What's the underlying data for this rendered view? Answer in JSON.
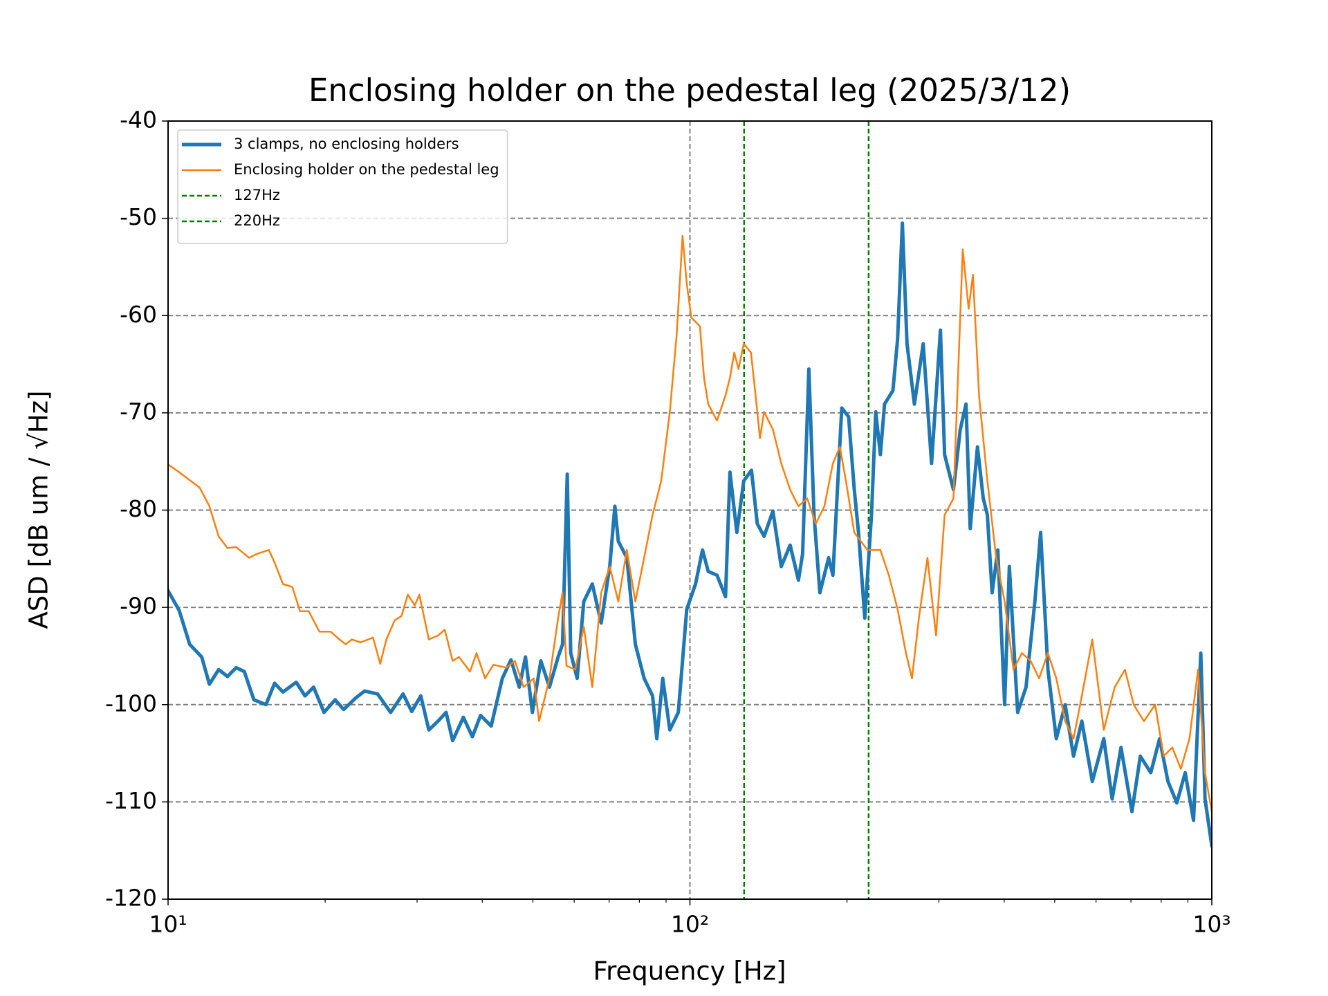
{
  "chart_data": {
    "type": "line",
    "title": "Enclosing holder on the pedestal leg (2025/3/12)",
    "xlabel": "Frequency [Hz]",
    "ylabel": "ASD [dB um / √Hz]",
    "xscale": "log",
    "xlim": [
      10,
      1000
    ],
    "xticks": [
      {
        "value": 10,
        "label": "10¹"
      },
      {
        "value": 100,
        "label": "10²"
      },
      {
        "value": 1000,
        "label": "10³"
      }
    ],
    "ylim": [
      -120,
      -40
    ],
    "yticks": [
      -120,
      -110,
      -100,
      -90,
      -80,
      -70,
      -60,
      -50,
      -40
    ],
    "grid": true,
    "legend": "upper left",
    "series": [
      {
        "name": "3 clamps, no enclosing holders",
        "color": "#1f77b4",
        "width": 5,
        "x": [
          10,
          10.5,
          11,
          11.6,
          12,
          12.5,
          13,
          13.5,
          14,
          14.6,
          15.4,
          16,
          16.6,
          17.6,
          18.3,
          19,
          19.9,
          20.9,
          21.7,
          22.9,
          23.8,
          25.2,
          26.7,
          28.2,
          29.3,
          30.5,
          31.6,
          32.9,
          34.1,
          35.1,
          36.8,
          38.3,
          39.7,
          41.6,
          43.7,
          45.4,
          47.1,
          48.4,
          49.9,
          51.8,
          53.8,
          55.9,
          57,
          58.2,
          59.1,
          60.8,
          62.6,
          65,
          67.6,
          70.2,
          71.8,
          72.9,
          75.7,
          78.6,
          81.7,
          84.8,
          86.4,
          88.7,
          91.5,
          95,
          98.6,
          102.5,
          105.7,
          108.4,
          112.7,
          117,
          119.3,
          123,
          126.8,
          131.2,
          134.6,
          138.7,
          144.2,
          149.6,
          155.6,
          161.4,
          164.4,
          169,
          172.9,
          177.4,
          184.4,
          187.9,
          195.4,
          201.4,
          206.5,
          210.4,
          216.3,
          222.8,
          227,
          231.7,
          236,
          244.9,
          250,
          255.3,
          260.6,
          269.2,
          279.9,
          290.4,
          302,
          307.6,
          319.9,
          329.6,
          338.1,
          344.4,
          355.6,
          364.8,
          371.5,
          379.3,
          389,
          400.9,
          409.3,
          424.6,
          440.6,
          458.1,
          469.9,
          485.3,
          503.5,
          523.6,
          543.3,
          563.6,
          590.2,
          620.9,
          644.2,
          669.9,
          703.1,
          729.5,
          763.9,
          794.3,
          824.2,
          857,
          889.2,
          922.6,
          952.6,
          970.5,
          1000
        ],
        "values": [
          -88.3,
          -90.3,
          -93.8,
          -95.1,
          -97.9,
          -96.4,
          -97.1,
          -96.2,
          -96.6,
          -99.5,
          -100,
          -97.8,
          -98.7,
          -97.7,
          -99.1,
          -98.2,
          -100.8,
          -99.5,
          -100.5,
          -99.3,
          -98.6,
          -98.9,
          -100.8,
          -98.9,
          -100.7,
          -99.1,
          -102.6,
          -101.7,
          -100.8,
          -103.7,
          -101.3,
          -103.3,
          -101.1,
          -102.2,
          -97.3,
          -95.4,
          -98.2,
          -95.1,
          -100.8,
          -95.5,
          -98.2,
          -95.1,
          -93.8,
          -76.3,
          -94.7,
          -97.3,
          -89.4,
          -87.6,
          -91.6,
          -85.8,
          -79.6,
          -83.2,
          -84.9,
          -93.8,
          -97.3,
          -99.1,
          -103.5,
          -97.3,
          -102.6,
          -100.8,
          -90.2,
          -87.6,
          -84.1,
          -86.3,
          -86.7,
          -88.9,
          -76.1,
          -82.3,
          -77,
          -75.9,
          -81.4,
          -82.7,
          -80.1,
          -85.8,
          -83.6,
          -87.2,
          -84.5,
          -65.5,
          -80.5,
          -88.5,
          -84.9,
          -86.7,
          -69.5,
          -70.4,
          -77.9,
          -82.3,
          -91.1,
          -80.5,
          -69.9,
          -74.3,
          -69.1,
          -67.7,
          -62.4,
          -50.5,
          -62.9,
          -69.1,
          -62.9,
          -75.2,
          -61.5,
          -74.3,
          -77.9,
          -71.7,
          -69.1,
          -81.9,
          -73.5,
          -78.8,
          -80.5,
          -88.5,
          -84.1,
          -100,
          -85.8,
          -100.8,
          -98.2,
          -89.4,
          -82.3,
          -96.4,
          -103.5,
          -100,
          -105.3,
          -101.7,
          -107.9,
          -103.5,
          -109.7,
          -104.4,
          -111,
          -105.3,
          -107,
          -103.5,
          -107.9,
          -110.1,
          -107,
          -111.9,
          -94.7,
          -109.7,
          -114.5
        ]
      },
      {
        "name": "Enclosing holder on the pedestal leg",
        "color": "#ff7f0e",
        "width": 2.5,
        "x": [
          10,
          10.5,
          11.5,
          12,
          12.5,
          13,
          13.5,
          14.3,
          14.8,
          15.6,
          16,
          16.6,
          17.3,
          17.9,
          18.6,
          19.5,
          20.5,
          21.3,
          21.9,
          22.5,
          23.4,
          24.7,
          25.5,
          26.2,
          27.2,
          28,
          28.8,
          29.7,
          30.3,
          31.6,
          32.9,
          33.9,
          35.1,
          36.1,
          37.9,
          39,
          40.5,
          42,
          44.5,
          46.2,
          48,
          50.2,
          51.4,
          53.8,
          55.9,
          57,
          58,
          60.3,
          62.6,
          65,
          67.6,
          70.2,
          72.9,
          75.7,
          78.6,
          81.7,
          84.8,
          88.1,
          91.5,
          94.3,
          96.8,
          98.6,
          100.6,
          104.5,
          106.4,
          108.4,
          112.7,
          117,
          119.3,
          121.6,
          123.9,
          126.8,
          130.9,
          133.6,
          136.2,
          138.7,
          144.2,
          149.6,
          155.6,
          161.4,
          167.8,
          174.2,
          181,
          187.9,
          193.8,
          199,
          206.5,
          218.8,
          231.7,
          240.5,
          250,
          259.4,
          266.4,
          274.6,
          285.2,
          296.2,
          307.6,
          319.9,
          333.2,
          342,
          348.6,
          358.1,
          371.5,
          386.2,
          400.9,
          416.8,
          432.7,
          449.5,
          466.7,
          485.3,
          503.5,
          523.6,
          543.3,
          563.6,
          590.2,
          620.9,
          651.6,
          681.8,
          708.5,
          741.3,
          778.8,
          808.8,
          840.1,
          872.4,
          906.1,
          941.2,
          970.5,
          1000
        ],
        "values": [
          -75.3,
          -76.1,
          -77.7,
          -79.6,
          -82.7,
          -83.9,
          -83.8,
          -84.9,
          -84.5,
          -84.1,
          -85.4,
          -87.6,
          -87.9,
          -90.4,
          -90.4,
          -92.5,
          -92.5,
          -93.3,
          -93.8,
          -93.3,
          -93.6,
          -93.1,
          -95.8,
          -93.3,
          -91.3,
          -90.9,
          -88.7,
          -89.8,
          -88.7,
          -93.3,
          -92.9,
          -92.3,
          -95.5,
          -95.1,
          -96.6,
          -94.7,
          -97.3,
          -95.9,
          -96.2,
          -95.5,
          -98.2,
          -97.3,
          -101.7,
          -97.3,
          -91.1,
          -88.5,
          -96,
          -96.4,
          -92,
          -98.2,
          -88.5,
          -85.8,
          -89.4,
          -84.1,
          -89.4,
          -84.9,
          -80.5,
          -77,
          -69.9,
          -62,
          -51.8,
          -56.7,
          -60.2,
          -61.1,
          -66.4,
          -69.1,
          -70.8,
          -68.2,
          -66.4,
          -63.8,
          -65.5,
          -62.9,
          -63.8,
          -68.2,
          -72.6,
          -69.9,
          -71.7,
          -75.2,
          -77.9,
          -79.6,
          -78.8,
          -81.4,
          -79.6,
          -75.2,
          -73.5,
          -77,
          -82.3,
          -84.1,
          -84.1,
          -86.7,
          -90.2,
          -94.7,
          -97.3,
          -91.1,
          -84.9,
          -92.9,
          -80.5,
          -78.8,
          -53.2,
          -59.3,
          -55.8,
          -68.2,
          -77,
          -84.9,
          -89.4,
          -96.4,
          -94.7,
          -95.5,
          -97.3,
          -94.7,
          -97.3,
          -101.7,
          -103.5,
          -99.1,
          -93.3,
          -102.6,
          -98.2,
          -96.4,
          -100,
          -101.7,
          -100,
          -105.3,
          -104.4,
          -106.6,
          -103.5,
          -96.4,
          -107,
          -111
        ]
      }
    ],
    "vlines": [
      {
        "name": "127Hz",
        "x": 127,
        "color": "green"
      },
      {
        "name": "220Hz",
        "x": 220,
        "color": "green"
      }
    ]
  }
}
